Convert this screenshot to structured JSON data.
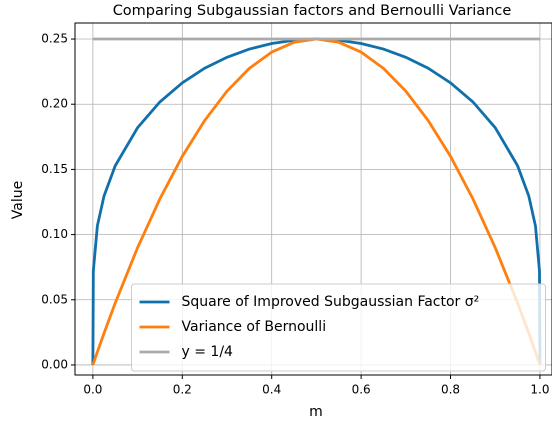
{
  "chart_data": {
    "type": "line",
    "title": "Comparing Subgaussian factors and Bernoulli Variance",
    "xlabel": "m",
    "ylabel": "Value",
    "x": [
      0,
      0.001,
      0.01,
      0.025,
      0.05,
      0.1,
      0.15,
      0.2,
      0.25,
      0.3,
      0.35,
      0.4,
      0.45,
      0.5,
      0.55,
      0.6,
      0.65,
      0.7,
      0.75,
      0.8,
      0.85,
      0.9,
      0.95,
      0.975,
      0.99,
      0.999,
      1
    ],
    "series": [
      {
        "name": "Square of Improved Subgaussian Factor σ²",
        "color": "#1170aa",
        "values": [
          0,
          0.0722,
          0.1066,
          0.1297,
          0.1528,
          0.182,
          0.2018,
          0.2164,
          0.2276,
          0.236,
          0.2423,
          0.2466,
          0.2491,
          0.25,
          0.2491,
          0.2466,
          0.2423,
          0.236,
          0.2276,
          0.2164,
          0.2018,
          0.182,
          0.1528,
          0.1297,
          0.1066,
          0.0722,
          0
        ]
      },
      {
        "name": "Variance of Bernoulli",
        "color": "#ff7f0e",
        "values": [
          0,
          0.001,
          0.0099,
          0.0244,
          0.0475,
          0.09,
          0.1275,
          0.16,
          0.1875,
          0.21,
          0.2275,
          0.24,
          0.2475,
          0.25,
          0.2475,
          0.24,
          0.2275,
          0.21,
          0.1875,
          0.16,
          0.1275,
          0.09,
          0.0475,
          0.0244,
          0.0099,
          0.001,
          0
        ]
      },
      {
        "name": "y = 1/4",
        "color": "#aaaaaa",
        "values": [
          0.25,
          0.25,
          0.25,
          0.25,
          0.25,
          0.25,
          0.25,
          0.25,
          0.25,
          0.25,
          0.25,
          0.25,
          0.25,
          0.25,
          0.25,
          0.25,
          0.25,
          0.25,
          0.25,
          0.25,
          0.25,
          0.25,
          0.25,
          0.25,
          0.25,
          0.25,
          0.25
        ]
      }
    ],
    "xlim": [
      -0.04,
      1.027
    ],
    "ylim": [
      -0.0077,
      0.2623
    ],
    "xticks": [
      {
        "value": 0,
        "label": "0.0"
      },
      0.2,
      0.4,
      0.6,
      0.8,
      {
        "value": 1,
        "label": "1.0"
      }
    ],
    "yticks": [
      {
        "value": 0,
        "label": "0.00"
      },
      {
        "value": 0.05,
        "label": "0.05"
      },
      {
        "value": 0.1,
        "label": "0.10"
      },
      {
        "value": 0.15,
        "label": "0.15"
      },
      {
        "value": 0.2,
        "label": "0.20"
      },
      {
        "value": 0.25,
        "label": "0.25"
      }
    ],
    "grid": true,
    "legend": "lower center"
  }
}
